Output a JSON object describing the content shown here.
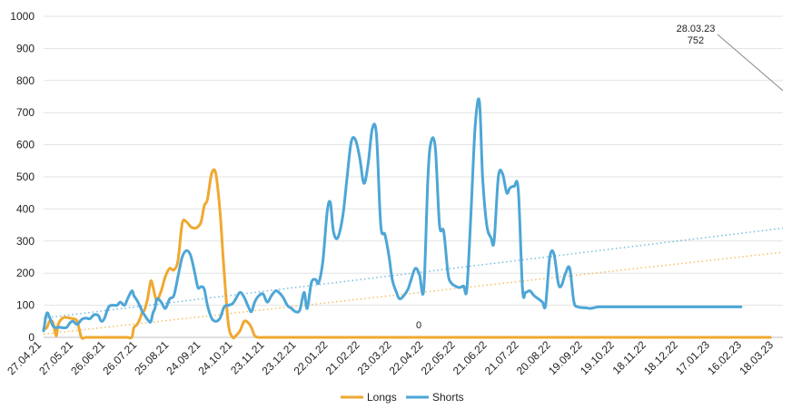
{
  "chart_data": {
    "type": "line",
    "title": "",
    "xlabel": "",
    "ylabel": "",
    "ylim": [
      0,
      1000
    ],
    "yticks": [
      "0",
      "100",
      "200",
      "300",
      "400",
      "500",
      "600",
      "700",
      "800",
      "900",
      "1000"
    ],
    "x_tick_labels": [
      "27.04.21",
      "27.05.21",
      "26.06.21",
      "26.07.21",
      "25.08.21",
      "24.09.21",
      "24.10.21",
      "23.11.21",
      "23.12.21",
      "22.01.22",
      "21.02.22",
      "23.03.22",
      "22.04.22",
      "22.05.22",
      "21.06.22",
      "21.07.22",
      "20.08.22",
      "19.09.22",
      "19.10.22",
      "18.11.22",
      "18.12.22",
      "17.01.23",
      "16.02.23",
      "18.03.23"
    ],
    "x_days": [
      0,
      3,
      6,
      9,
      12,
      14,
      18,
      22,
      25,
      28,
      32,
      36,
      40,
      44,
      48,
      52,
      55,
      58,
      62,
      66,
      70,
      73,
      77,
      80,
      84,
      86,
      89,
      92,
      94,
      96,
      99,
      102,
      104,
      106,
      108,
      112,
      116,
      120,
      124,
      128,
      132,
      136,
      140,
      144,
      147,
      150,
      153,
      156,
      160,
      164,
      168,
      172,
      176,
      180,
      183,
      187,
      191,
      195,
      198,
      201,
      205,
      209,
      213,
      217,
      221,
      224,
      228,
      232,
      236,
      240,
      244,
      248,
      251,
      255,
      259,
      262,
      266,
      270,
      273,
      276,
      280,
      285,
      289,
      293,
      297,
      301,
      305,
      309,
      313,
      317,
      321,
      325,
      329,
      332,
      336,
      339,
      343,
      347,
      350,
      354,
      358,
      362,
      366,
      369,
      373,
      377,
      381,
      385,
      388,
      392,
      396,
      400,
      403,
      407,
      411,
      415,
      418,
      422,
      426,
      429,
      433,
      437,
      441,
      444,
      448,
      452,
      456,
      459,
      463,
      467,
      471,
      475,
      478,
      482,
      486,
      490,
      493,
      497,
      501,
      505,
      509,
      512,
      516,
      520,
      524,
      528,
      531,
      535,
      539,
      542,
      546,
      550,
      554,
      558,
      561,
      565,
      569,
      573,
      576,
      580,
      584,
      588,
      592,
      596,
      600,
      604,
      608,
      612,
      616,
      620,
      624,
      628,
      632,
      636,
      640,
      644,
      648,
      652,
      656,
      660,
      664,
      668,
      672,
      676,
      680,
      684,
      688,
      692,
      696,
      700,
      704
    ],
    "series": [
      {
        "name": "Longs",
        "color": "#f0a830",
        "values": [
          25,
          30,
          52,
          45,
          5,
          40,
          60,
          62,
          60,
          58,
          50,
          0,
          0,
          0,
          0,
          0,
          0,
          0,
          0,
          0,
          0,
          0,
          0,
          0,
          0,
          30,
          40,
          60,
          80,
          85,
          120,
          175,
          160,
          130,
          115,
          145,
          190,
          215,
          210,
          240,
          355,
          360,
          345,
          340,
          345,
          360,
          410,
          430,
          510,
          510,
          390,
          200,
          40,
          0,
          5,
          20,
          50,
          45,
          30,
          5,
          0,
          0,
          0,
          0,
          0,
          0,
          0,
          0,
          0,
          0,
          0,
          0,
          0,
          0,
          0,
          0,
          0,
          0,
          0,
          0,
          0,
          0,
          0,
          0,
          0,
          0,
          0,
          0,
          0,
          0,
          0,
          0,
          0,
          0,
          0,
          0,
          0,
          0,
          0,
          0,
          0,
          0,
          0,
          0,
          0,
          0,
          0,
          0,
          0,
          0,
          0,
          0,
          0,
          0,
          0,
          0,
          0,
          0,
          0,
          0,
          0,
          0,
          0,
          0,
          0,
          0,
          0,
          0,
          0,
          0,
          0,
          0,
          0,
          0,
          0,
          0,
          0,
          0,
          0,
          0,
          0,
          0,
          0,
          0,
          0,
          0,
          0,
          0,
          0,
          0,
          0,
          0,
          0,
          0,
          0,
          0,
          0,
          0,
          0,
          0,
          0,
          0,
          0,
          0,
          0,
          0,
          0,
          0,
          0,
          0,
          0,
          0,
          0,
          0,
          0,
          0,
          0,
          0,
          0,
          0,
          0,
          0,
          0,
          0,
          0,
          0,
          0,
          0
        ],
        "trendline": [
          10,
          265
        ]
      },
      {
        "name": "Shorts",
        "color": "#4da6d6",
        "values": [
          20,
          75,
          60,
          35,
          30,
          32,
          30,
          31,
          45,
          50,
          40,
          55,
          60,
          58,
          70,
          68,
          50,
          60,
          95,
          100,
          100,
          110,
          100,
          120,
          145,
          130,
          115,
          95,
          80,
          70,
          55,
          48,
          75,
          90,
          120,
          110,
          90,
          120,
          130,
          190,
          250,
          270,
          255,
          200,
          155,
          158,
          150,
          100,
          60,
          50,
          60,
          95,
          100,
          105,
          120,
          140,
          125,
          95,
          80,
          110,
          130,
          135,
          110,
          130,
          145,
          140,
          125,
          100,
          90,
          80,
          85,
          140,
          90,
          170,
          180,
          170,
          240,
          390,
          420,
          330,
          310,
          380,
          500,
          610,
          615,
          560,
          480,
          540,
          650,
          630,
          350,
          320,
          250,
          180,
          140,
          120,
          130,
          150,
          180,
          215,
          195,
          150,
          500,
          610,
          590,
          350,
          330,
          200,
          170,
          160,
          155,
          160,
          150,
          390,
          660,
          735,
          500,
          350,
          310,
          300,
          500,
          510,
          450,
          465,
          470,
          460,
          150,
          140,
          145,
          130,
          120,
          110,
          100,
          250,
          260,
          170,
          160,
          200,
          215,
          110,
          95,
          93,
          92,
          90,
          92,
          95,
          95,
          95,
          95,
          95,
          95,
          95,
          95,
          95,
          95,
          95,
          95,
          95,
          95,
          95,
          95,
          95,
          95,
          95,
          95,
          95,
          95,
          95,
          95,
          95,
          95,
          95,
          95,
          95,
          95,
          95,
          95,
          95,
          95,
          95,
          95
        ],
        "trendline": [
          60,
          340
        ]
      }
    ],
    "annotations": [
      {
        "text": "0",
        "series": "Longs"
      },
      {
        "text": "28.03.23",
        "series": "Longs"
      },
      {
        "text": "752",
        "series": "Longs"
      }
    ],
    "legend": {
      "position": "bottom",
      "entries": [
        "Longs",
        "Shorts"
      ]
    },
    "grid": true
  }
}
